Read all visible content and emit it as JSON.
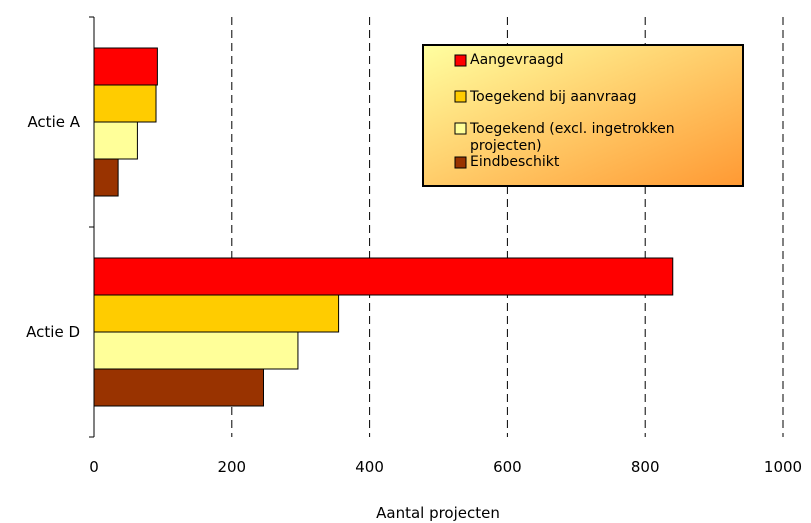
{
  "chart_data": {
    "type": "bar",
    "orientation": "horizontal",
    "categories": [
      "Actie A",
      "Actie D"
    ],
    "series": [
      {
        "name": "Aangevraagd",
        "values": [
          92,
          840
        ],
        "color": "#ff0000"
      },
      {
        "name": "Toegekend bij aanvraag",
        "values": [
          90,
          355
        ],
        "color": "#ffcc00"
      },
      {
        "name": "Toegekend (excl. ingetrokken projecten)",
        "values": [
          63,
          296
        ],
        "color": "#ffff99"
      },
      {
        "name": "Eindbeschikt",
        "values": [
          35,
          246
        ],
        "color": "#993300"
      }
    ],
    "xlabel": "Aantal projecten",
    "xlim": [
      0,
      1000
    ],
    "xticks": [
      "0",
      "200",
      "400",
      "600",
      "800",
      "1000"
    ],
    "grid": "vertical dashed",
    "legend_position": "top-right",
    "legend_background": [
      "#ffffa0",
      "#ff9933"
    ]
  }
}
